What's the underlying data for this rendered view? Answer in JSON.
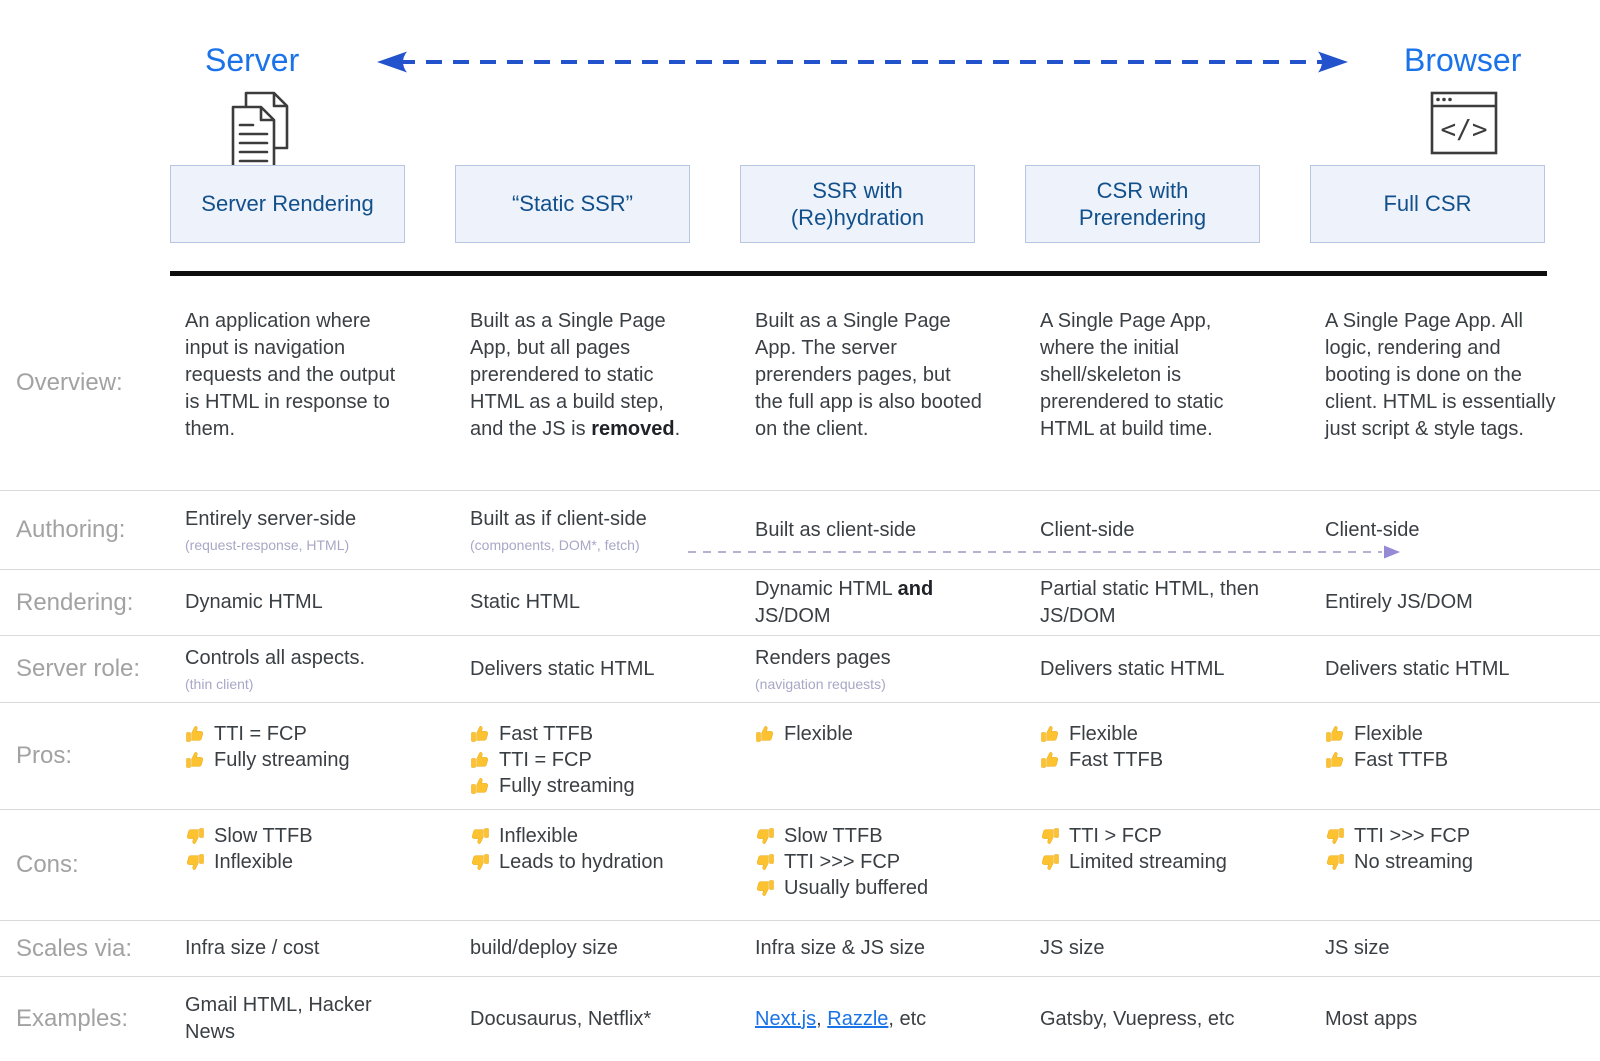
{
  "header": {
    "server_label": "Server",
    "browser_label": "Browser",
    "columns": [
      "Server Rendering",
      "“Static SSR”",
      "SSR with (Re)hydration",
      "CSR with Prerendering",
      "Full CSR"
    ]
  },
  "colors": {
    "endpoint_blue": "#1a73e8",
    "arrow_blue": "#2353cc",
    "box_bg": "#edf2fb",
    "box_border": "#b9c6e3",
    "box_text": "#12508b",
    "row_label_gray": "#a2a2a2",
    "body_text": "#3a3f44",
    "sub_lavender": "#a9a7c6",
    "link_blue": "#1a73e8",
    "thumb_yellow": "#fdc230",
    "authoring_arrow_purple": "#948ad6"
  },
  "rows": {
    "overview": {
      "label": "Overview:",
      "cells": [
        "An application where input is navigation requests and the output is HTML in response to them.",
        "Built as a Single Page App, but all pages prerendered to static HTML as a build step, and the JS is **removed**.",
        "Built as a Single Page App. The server prerenders pages, but the full app is also booted on the client.",
        "A Single Page App, where the initial shell/skeleton is prerendered to static HTML at build time.",
        "A Single Page App. All logic, rendering and booting is done on the client. HTML is essentially just script & style tags."
      ]
    },
    "authoring": {
      "label": "Authoring:",
      "cells": [
        {
          "main": "Entirely server-side",
          "sub": "(request-response, HTML)"
        },
        {
          "main": "Built as if client-side",
          "sub": "(components, DOM*, fetch)"
        },
        {
          "main": "Built as client-side"
        },
        {
          "main": "Client-side"
        },
        {
          "main": "Client-side"
        }
      ]
    },
    "rendering": {
      "label": "Rendering:",
      "cells": [
        "Dynamic HTML",
        "Static HTML",
        "Dynamic HTML **and** JS/DOM",
        "Partial static HTML, then JS/DOM",
        "Entirely JS/DOM"
      ]
    },
    "server_role": {
      "label": "Server role:",
      "cells": [
        {
          "main": "Controls all aspects.",
          "sub": "(thin client)"
        },
        {
          "main": "Delivers static HTML"
        },
        {
          "main": "Renders pages",
          "sub": "(navigation requests)"
        },
        {
          "main": "Delivers static HTML"
        },
        {
          "main": "Delivers static HTML"
        }
      ]
    },
    "pros": {
      "label": "Pros:",
      "cells": [
        [
          "TTI = FCP",
          "Fully streaming"
        ],
        [
          "Fast TTFB",
          "TTI = FCP",
          "Fully streaming"
        ],
        [
          "Flexible"
        ],
        [
          "Flexible",
          "Fast TTFB"
        ],
        [
          "Flexible",
          "Fast TTFB"
        ]
      ]
    },
    "cons": {
      "label": "Cons:",
      "cells": [
        [
          "Slow TTFB",
          "Inflexible"
        ],
        [
          "Inflexible",
          "Leads to hydration"
        ],
        [
          "Slow TTFB",
          "TTI >>> FCP",
          "Usually buffered"
        ],
        [
          "TTI > FCP",
          "Limited streaming"
        ],
        [
          "TTI >>> FCP",
          "No streaming"
        ]
      ]
    },
    "scales": {
      "label": "Scales via:",
      "cells": [
        "Infra size / cost",
        "build/deploy size",
        "Infra size & JS size",
        "JS size",
        "JS size"
      ]
    },
    "examples": {
      "label": "Examples:",
      "cells": [
        "Gmail HTML, Hacker News",
        "Docusaurus, Netflix*",
        "[Next.js](), [Razzle](), etc",
        "Gatsby, Vuepress, etc",
        "Most apps"
      ]
    }
  }
}
